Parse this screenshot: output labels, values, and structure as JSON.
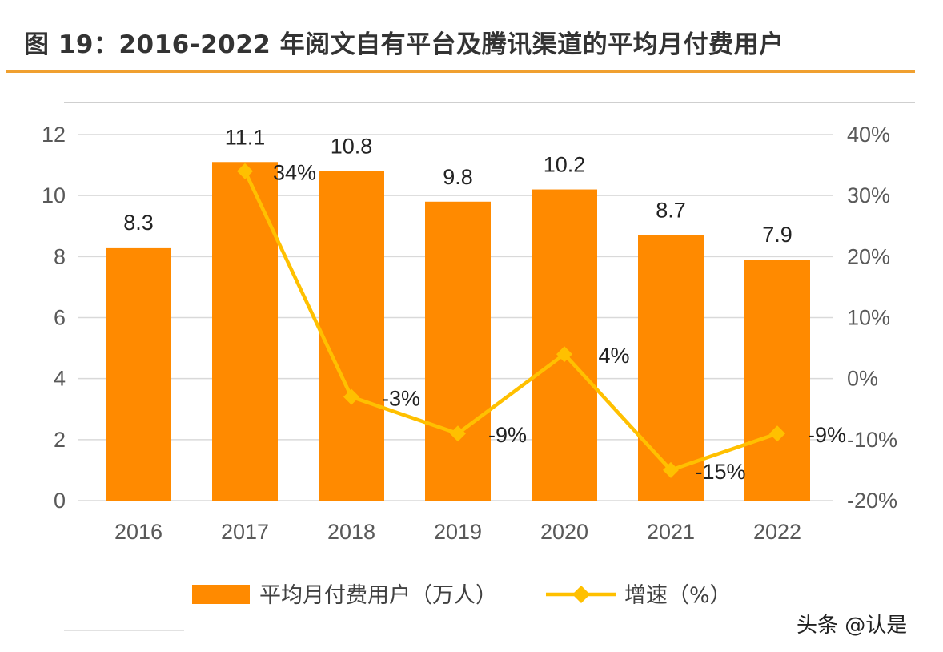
{
  "title": "图 19：2016-2022 年阅文自有平台及腾讯渠道的平均月付费用户",
  "watermark": "头条 @认是",
  "colors": {
    "bar": "#FF8A00",
    "line": "#FFC000",
    "title_rule": "#F0A030"
  },
  "chart_data": {
    "type": "bar+line",
    "categories": [
      "2016",
      "2017",
      "2018",
      "2019",
      "2020",
      "2021",
      "2022"
    ],
    "series": [
      {
        "name": "平均月付费用户（万人）",
        "type": "bar",
        "axis": "left",
        "values": [
          8.3,
          11.1,
          10.8,
          9.8,
          10.2,
          8.7,
          7.9
        ],
        "labels": [
          "8.3",
          "11.1",
          "10.8",
          "9.8",
          "10.2",
          "8.7",
          "7.9"
        ]
      },
      {
        "name": "增速（%）",
        "type": "line",
        "axis": "right",
        "marker": "diamond",
        "values": [
          null,
          34,
          -3,
          -9,
          4,
          -15,
          -9
        ],
        "labels": [
          "",
          "34%",
          "-3%",
          "-9%",
          "4%",
          "-15%",
          "-9%"
        ]
      }
    ],
    "y_left": {
      "range": [
        0,
        12
      ],
      "ticks": [
        "0",
        "2",
        "4",
        "6",
        "8",
        "10",
        "12"
      ]
    },
    "y_right": {
      "range": [
        -20,
        40
      ],
      "ticks": [
        "-20%",
        "-10%",
        "0%",
        "10%",
        "20%",
        "30%",
        "40%"
      ]
    },
    "grid": true,
    "legend": "bottom"
  }
}
